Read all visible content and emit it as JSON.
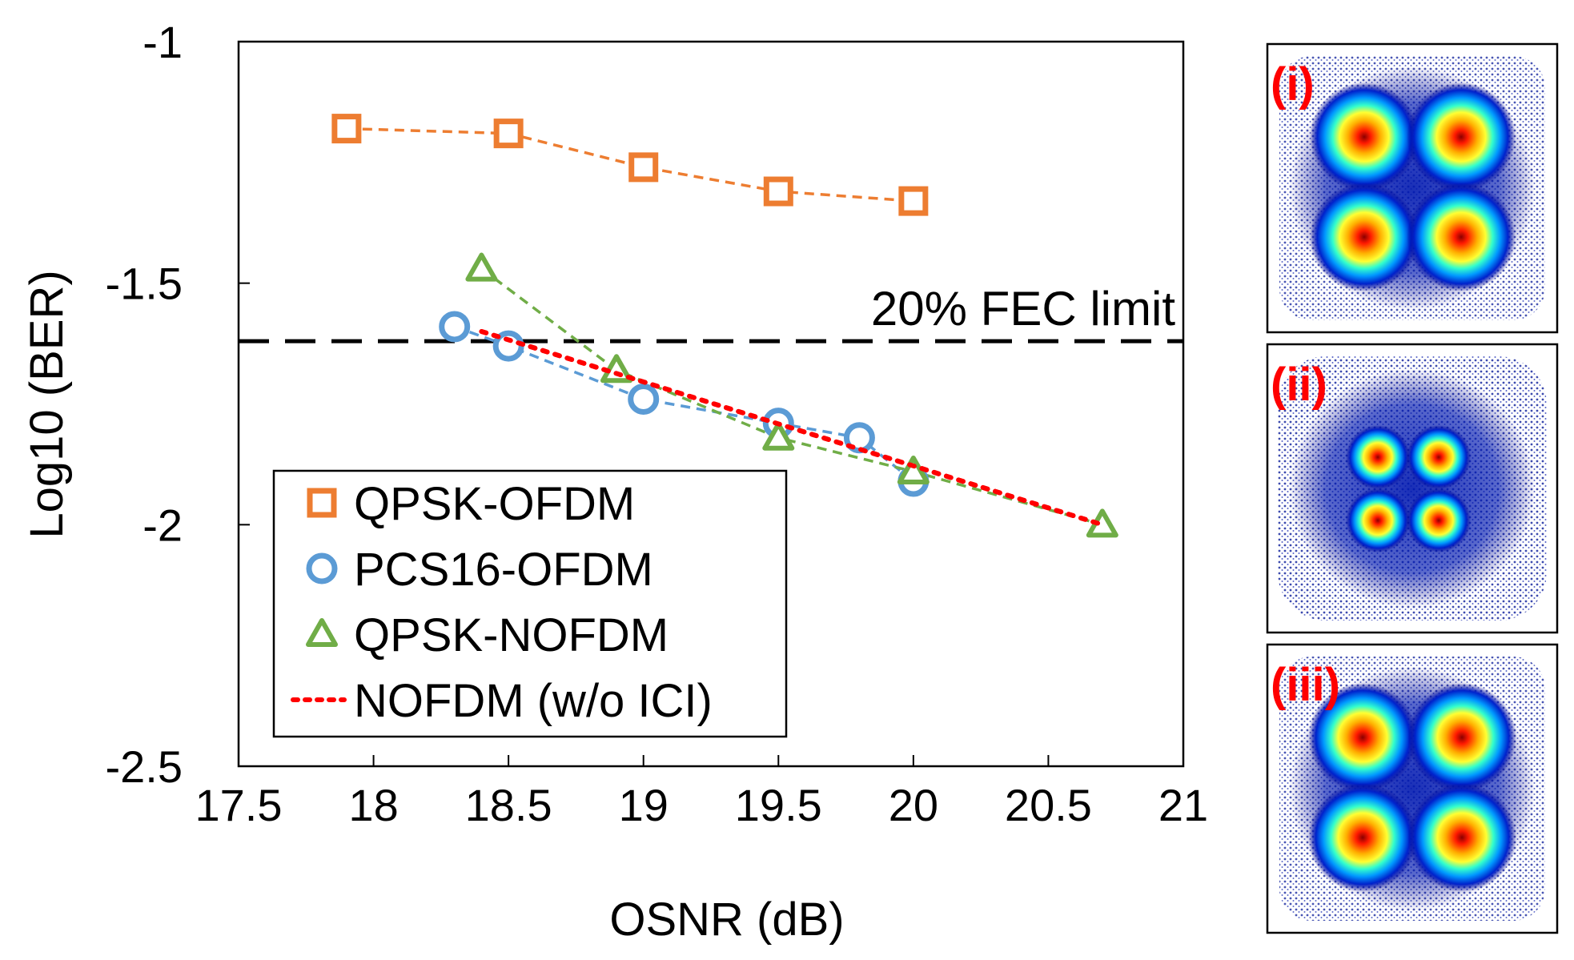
{
  "chart_data": {
    "type": "line",
    "title": "",
    "xlabel": "OSNR (dB)",
    "ylabel": "Log10 (BER)",
    "xlim": [
      17.5,
      21
    ],
    "ylim": [
      -2.5,
      -1
    ],
    "xticks": [
      17.5,
      18,
      18.5,
      19,
      19.5,
      20,
      20.5,
      21
    ],
    "xtick_labels": [
      "17.5",
      "18",
      "18.5",
      "19",
      "19.5",
      "20",
      "20.5",
      "21"
    ],
    "yticks": [
      -1,
      -1.5,
      -2,
      -2.5
    ],
    "ytick_labels": [
      "-1",
      "-1.5",
      "-2",
      "-2.5"
    ],
    "grid": false,
    "legend_position": "bottom-left",
    "series": [
      {
        "name": "QPSK-OFDM",
        "marker": "square",
        "color": "#ED7D31",
        "x": [
          17.9,
          18.5,
          19.0,
          19.5,
          20.0
        ],
        "y": [
          -1.18,
          -1.19,
          -1.26,
          -1.31,
          -1.33
        ]
      },
      {
        "name": "PCS16-OFDM",
        "marker": "circle",
        "color": "#5B9BD5",
        "x": [
          18.3,
          18.5,
          19.0,
          19.5,
          19.8,
          20.0
        ],
        "y": [
          -1.59,
          -1.63,
          -1.74,
          -1.79,
          -1.82,
          -1.91
        ]
      },
      {
        "name": "QPSK-NOFDM",
        "marker": "triangle",
        "color": "#70AD47",
        "x": [
          18.4,
          18.9,
          19.5,
          20.0,
          20.7
        ],
        "y": [
          -1.47,
          -1.68,
          -1.82,
          -1.89,
          -2.0
        ]
      },
      {
        "name": "NOFDM (w/o ICI)",
        "marker": "none",
        "line": "dotted",
        "color": "#FF0000",
        "x": [
          18.4,
          20.7
        ],
        "y": [
          -1.6,
          -2.0
        ]
      }
    ],
    "reference_lines": [
      {
        "label": "20% FEC limit",
        "y": -1.62,
        "style": "dashed",
        "color": "#000000"
      }
    ]
  },
  "constellations": [
    {
      "label": "(i)",
      "points": "4 clusters (QPSK)",
      "label_color": "#FF0000"
    },
    {
      "label": "(ii)",
      "points": "4 inner clusters with outer ring (PCS16)",
      "label_color": "#FF0000"
    },
    {
      "label": "(iii)",
      "points": "4 clusters (QPSK-NOFDM)",
      "label_color": "#FF0000"
    }
  ]
}
